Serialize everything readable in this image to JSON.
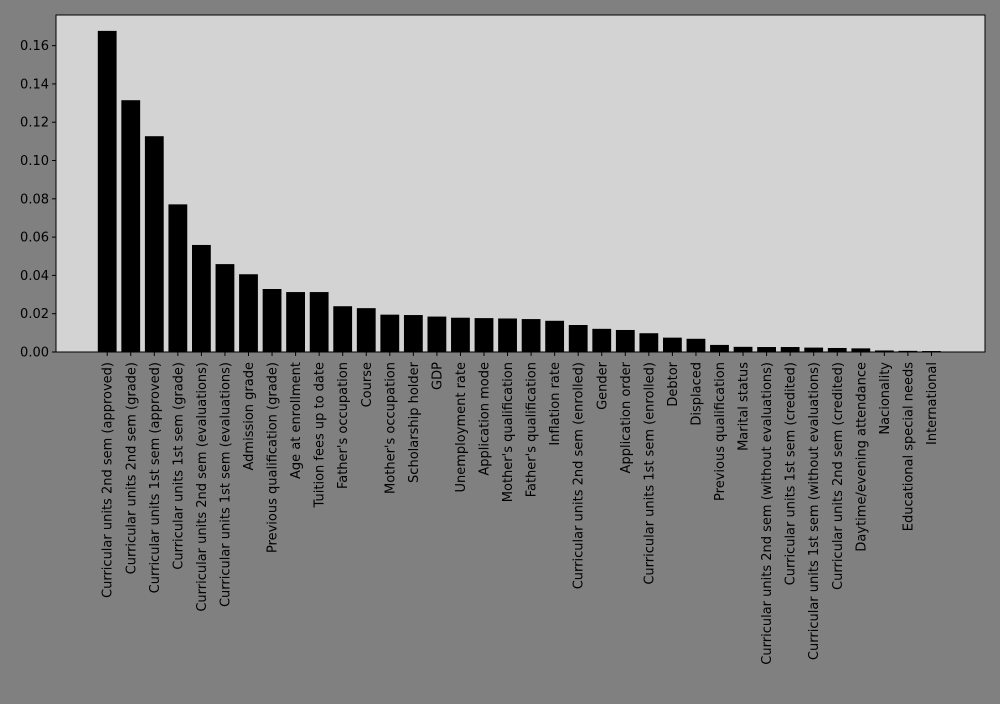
{
  "chart_data": {
    "type": "bar",
    "title": "",
    "xlabel": "",
    "ylabel": "",
    "ylim": [
      0,
      0.176
    ],
    "yticks": [
      "0.00",
      "0.02",
      "0.04",
      "0.06",
      "0.08",
      "0.10",
      "0.12",
      "0.14",
      "0.16"
    ],
    "grid": false,
    "colors": {
      "figure_background": "#808080",
      "plot_background": "#d3d3d3",
      "bar": "#000000"
    },
    "categories": [
      "Curricular units 2nd sem (approved)",
      "Curricular units 2nd sem (grade)",
      "Curricular units 1st sem (approved)",
      "Curricular units 1st sem (grade)",
      "Curricular units 2nd sem (evaluations)",
      "Curricular units 1st sem (evaluations)",
      "Admission grade",
      "Previous qualification (grade)",
      "Age at enrollment",
      "Tuition fees up to date",
      "Father's occupation",
      "Course",
      "Mother's occupation",
      "Scholarship holder",
      "GDP",
      "Unemployment rate",
      "Application mode",
      "Mother's qualification",
      "Father's qualification",
      "Inflation rate",
      "Curricular units 2nd sem (enrolled)",
      "Gender",
      "Application order",
      "Curricular units 1st sem (enrolled)",
      "Debtor",
      "Displaced",
      "Previous qualification",
      "Marital status",
      "Curricular units 2nd sem (without evaluations)",
      "Curricular units 1st sem (credited)",
      "Curricular units 1st sem (without evaluations)",
      "Curricular units 2nd sem (credited)",
      "Daytime/evening attendance",
      "Nacionality",
      "Educational special needs",
      "International"
    ],
    "values": [
      0.1677,
      0.1315,
      0.1127,
      0.0771,
      0.0559,
      0.0459,
      0.0406,
      0.0329,
      0.0313,
      0.0313,
      0.0239,
      0.0229,
      0.0195,
      0.0193,
      0.0185,
      0.0179,
      0.0177,
      0.0175,
      0.0172,
      0.0163,
      0.0141,
      0.0121,
      0.0115,
      0.0098,
      0.0075,
      0.0069,
      0.0037,
      0.0027,
      0.0026,
      0.0026,
      0.0023,
      0.0021,
      0.0019,
      0.0008,
      0.0006,
      0.0005
    ]
  }
}
